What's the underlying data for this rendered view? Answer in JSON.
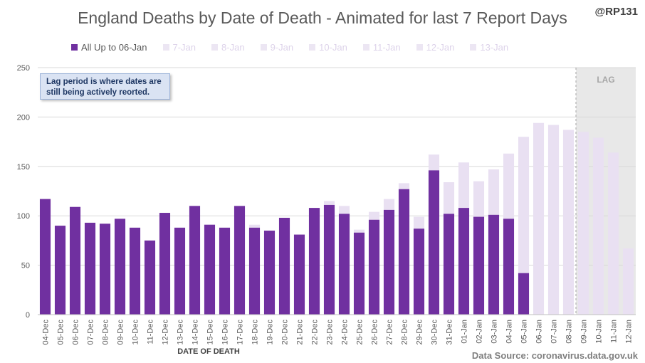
{
  "header": {
    "title": "England Deaths by Date of Death - Animated for last 7 Report Days",
    "handle": "@RP131"
  },
  "legend": [
    {
      "label": "All Up to 06-Jan",
      "color": "#7030a0",
      "faded": false
    },
    {
      "label": "7-Jan",
      "color": "#ece6f3",
      "faded": true
    },
    {
      "label": "8-Jan",
      "color": "#ece6f3",
      "faded": true
    },
    {
      "label": "9-Jan",
      "color": "#ece6f3",
      "faded": true
    },
    {
      "label": "10-Jan",
      "color": "#ece6f3",
      "faded": true
    },
    {
      "label": "11-Jan",
      "color": "#ece6f3",
      "faded": true
    },
    {
      "label": "12-Jan",
      "color": "#ece6f3",
      "faded": true
    },
    {
      "label": "13-Jan",
      "color": "#ece6f3",
      "faded": true
    }
  ],
  "annotation": {
    "line1": "Lag period is where dates are",
    "line2": "still being actively reorted."
  },
  "lag_label": "LAG",
  "source": "Data Source: coronavirus.data.gov.uk",
  "colors": {
    "current": "#7030a0",
    "later": "#e9e0f2",
    "lag_shade": "#e8e8e8",
    "grid": "#d9d9d9"
  },
  "chart_data": {
    "type": "bar",
    "stacked": true,
    "xlabel": "DATE OF DEATH",
    "ylabel": "",
    "ylim": [
      0,
      250
    ],
    "yticks": [
      0,
      50,
      100,
      150,
      200,
      250
    ],
    "grid": true,
    "legend_position": "top",
    "lag_start_category": "09-Jan",
    "categories": [
      "04-Dec",
      "05-Dec",
      "06-Dec",
      "07-Dec",
      "08-Dec",
      "09-Dec",
      "10-Dec",
      "11-Dec",
      "12-Dec",
      "13-Dec",
      "14-Dec",
      "15-Dec",
      "16-Dec",
      "17-Dec",
      "18-Dec",
      "19-Dec",
      "20-Dec",
      "21-Dec",
      "22-Dec",
      "23-Dec",
      "24-Dec",
      "25-Dec",
      "26-Dec",
      "27-Dec",
      "28-Dec",
      "29-Dec",
      "30-Dec",
      "31-Dec",
      "01-Jan",
      "02-Jan",
      "03-Jan",
      "04-Jan",
      "05-Jan",
      "06-Jan",
      "07-Jan",
      "08-Jan",
      "09-Jan",
      "10-Jan",
      "11-Jan",
      "12-Jan"
    ],
    "series": [
      {
        "name": "All Up to 06-Jan",
        "values": [
          117,
          90,
          109,
          93,
          92,
          97,
          88,
          75,
          103,
          88,
          110,
          91,
          88,
          110,
          88,
          85,
          98,
          81,
          108,
          111,
          102,
          83,
          96,
          106,
          127,
          87,
          146,
          102,
          108,
          99,
          101,
          97,
          42,
          0,
          0,
          0,
          0,
          0,
          0,
          0
        ]
      },
      {
        "name": "7-Jan to 13-Jan",
        "values": [
          0,
          0,
          0,
          0,
          0,
          0,
          0,
          0,
          0,
          0,
          0,
          0,
          0,
          0,
          3,
          0,
          0,
          0,
          0,
          4,
          8,
          3,
          8,
          11,
          6,
          12,
          16,
          32,
          46,
          36,
          46,
          66,
          138,
          194,
          192,
          187,
          185,
          179,
          164,
          67
        ]
      }
    ]
  }
}
